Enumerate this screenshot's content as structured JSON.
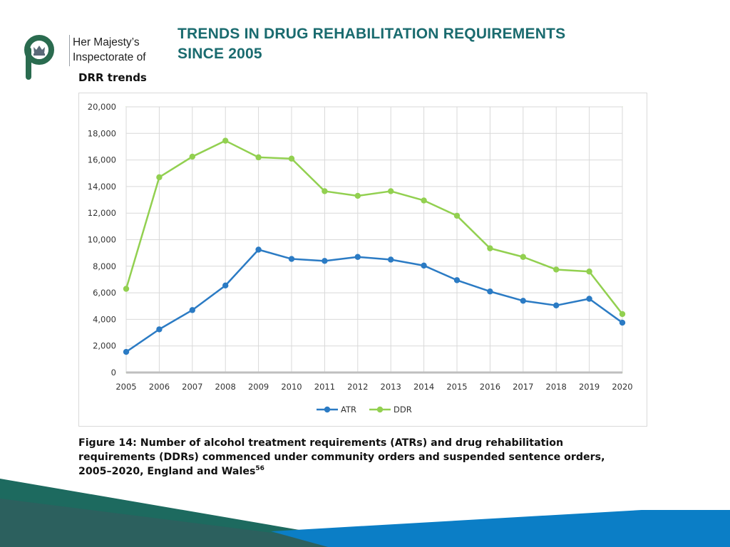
{
  "header": {
    "org_lines": [
      "Her Majesty’s",
      "Inspectorate of"
    ],
    "title_line1": "TRENDS IN DRUG REHABILITATION REQUIREMENTS",
    "title_line2": "SINCE 2005"
  },
  "section_heading": "DRR trends",
  "caption": {
    "text": "Figure 14: Number of alcohol treatment requirements (ATRs) and drug rehabilitation requirements (DDRs) commenced under community orders and suspended sentence orders, 2005–2020, England and Wales",
    "footnote": "56"
  },
  "colors": {
    "atr": "#2b7bc4",
    "ddr": "#92d050",
    "title": "#1a6b6f",
    "logo_green": "#2a6b4f",
    "footer_teal": "#1d6a5f",
    "footer_blue": "#0b7ec6"
  },
  "chart_data": {
    "type": "line",
    "title": "",
    "xlabel": "",
    "ylabel": "",
    "categories": [
      "2005",
      "2006",
      "2007",
      "2008",
      "2009",
      "2010",
      "2011",
      "2012",
      "2013",
      "2014",
      "2015",
      "2016",
      "2017",
      "2018",
      "2019",
      "2020"
    ],
    "ylim": [
      0,
      20000
    ],
    "yticks": [
      0,
      2000,
      4000,
      6000,
      8000,
      10000,
      12000,
      14000,
      16000,
      18000,
      20000
    ],
    "ytick_labels": [
      "0",
      "2,000",
      "4,000",
      "6,000",
      "8,000",
      "10,000",
      "12,000",
      "14,000",
      "16,000",
      "18,000",
      "20,000"
    ],
    "grid": true,
    "legend_position": "bottom",
    "series": [
      {
        "name": "ATR",
        "color": "#2b7bc4",
        "values": [
          1550,
          3250,
          4700,
          6550,
          9250,
          8550,
          8400,
          8700,
          8500,
          8050,
          6950,
          6100,
          5400,
          5050,
          5550,
          3750
        ]
      },
      {
        "name": "DDR",
        "color": "#92d050",
        "values": [
          6300,
          14700,
          16250,
          17450,
          16200,
          16100,
          13650,
          13300,
          13650,
          12950,
          11800,
          9350,
          8700,
          7750,
          7600,
          4400
        ]
      }
    ]
  }
}
